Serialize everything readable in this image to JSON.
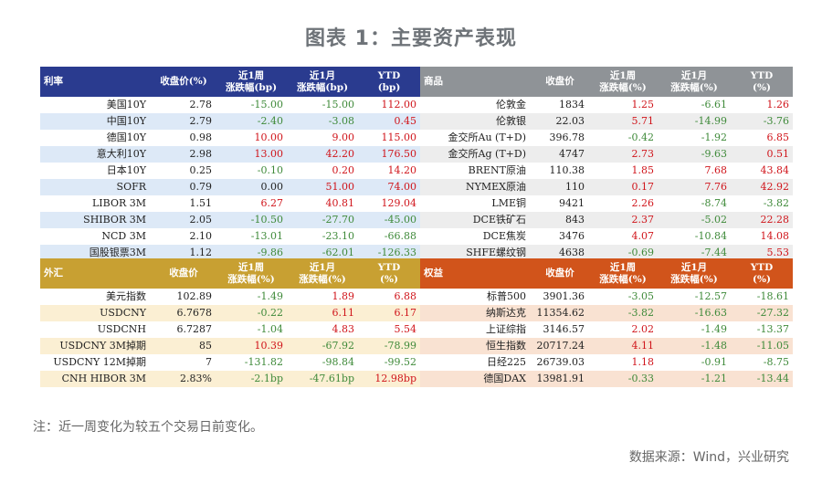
{
  "title": "图表 1：主要资产表现",
  "rates": {
    "headers": [
      "利率",
      "收盘价(%)",
      "近1周\n涨跌幅(bp)",
      "近1月\n涨跌幅(bp)",
      "YTD\n(bp)"
    ],
    "rows": [
      [
        "美国10Y",
        "2.78",
        "-15.00",
        "-15.00",
        "112.00"
      ],
      [
        "中国10Y",
        "2.79",
        "-2.40",
        "-3.08",
        "0.45"
      ],
      [
        "德国10Y",
        "0.98",
        "10.00",
        "9.00",
        "115.00"
      ],
      [
        "意大利10Y",
        "2.98",
        "13.00",
        "42.20",
        "176.50"
      ],
      [
        "日本10Y",
        "0.25",
        "-0.10",
        "0.20",
        "14.20"
      ],
      [
        "SOFR",
        "0.79",
        "0.00",
        "51.00",
        "74.00"
      ],
      [
        "LIBOR 3M",
        "1.51",
        "6.27",
        "40.81",
        "129.04"
      ],
      [
        "SHIBOR 3M",
        "2.05",
        "-10.50",
        "-27.70",
        "-45.00"
      ],
      [
        "NCD 3M",
        "2.10",
        "-13.01",
        "-23.10",
        "-66.88"
      ],
      [
        "国股银票3M",
        "1.12",
        "-9.86",
        "-62.01",
        "-126.33"
      ]
    ]
  },
  "commodities": {
    "headers": [
      "商品",
      "收盘价",
      "近1周\n涨跌幅(%)",
      "近1月\n涨跌幅(%)",
      "YTD\n(%)"
    ],
    "rows": [
      [
        "伦敦金",
        "1834",
        "1.25",
        "-6.61",
        "1.26"
      ],
      [
        "伦敦银",
        "22.03",
        "5.71",
        "-14.99",
        "-3.76"
      ],
      [
        "金交所Au (T+D)",
        "396.78",
        "-0.42",
        "-1.92",
        "6.85"
      ],
      [
        "金交所Ag (T+D)",
        "4747",
        "2.73",
        "-9.63",
        "0.51"
      ],
      [
        "BRENT原油",
        "110.38",
        "1.85",
        "7.68",
        "43.84"
      ],
      [
        "NYMEX原油",
        "110",
        "0.17",
        "7.76",
        "42.92"
      ],
      [
        "LME铜",
        "9421",
        "2.26",
        "-8.74",
        "-3.82"
      ],
      [
        "DCE铁矿石",
        "843",
        "2.37",
        "-5.02",
        "22.28"
      ],
      [
        "DCE焦炭",
        "3476",
        "4.07",
        "-10.84",
        "14.08"
      ],
      [
        "SHFE螺纹钢",
        "4638",
        "-0.69",
        "-7.44",
        "5.53"
      ]
    ]
  },
  "fx": {
    "headers": [
      "外汇",
      "收盘价",
      "近1周\n涨跌幅(%)",
      "近1月\n涨跌幅(%)",
      "YTD\n(%)"
    ],
    "rows": [
      [
        "美元指数",
        "102.89",
        "-1.49",
        "1.89",
        "6.88"
      ],
      [
        "USDCNY",
        "6.7678",
        "-0.22",
        "6.11",
        "6.17"
      ],
      [
        "USDCNH",
        "6.7287",
        "-1.04",
        "4.83",
        "5.54"
      ],
      [
        "USDCNY 3M掉期",
        "85",
        "10.39",
        "-67.92",
        "-78.99"
      ],
      [
        "USDCNY 12M掉期",
        "7",
        "-131.82",
        "-98.84",
        "-99.52"
      ],
      [
        "CNH HIBOR 3M",
        "2.83%",
        "-2.1bp",
        "-47.61bp",
        "12.98bp"
      ]
    ]
  },
  "equity": {
    "headers": [
      "权益",
      "收盘价",
      "近1周\n涨跌幅(%)",
      "近1月\n涨跌幅(%)",
      "YTD\n(%)"
    ],
    "rows": [
      [
        "标普500",
        "3901.36",
        "-3.05",
        "-12.57",
        "-18.61"
      ],
      [
        "纳斯达克",
        "11354.62",
        "-3.82",
        "-16.63",
        "-27.32"
      ],
      [
        "上证综指",
        "3146.57",
        "2.02",
        "-1.49",
        "-13.37"
      ],
      [
        "恒生指数",
        "20717.24",
        "4.11",
        "-1.48",
        "-11.05"
      ],
      [
        "日经225",
        "26739.03",
        "1.18",
        "-0.91",
        "-8.75"
      ],
      [
        "德国DAX",
        "13981.91",
        "-0.33",
        "-1.21",
        "-13.44"
      ]
    ]
  },
  "note": "注：近一周变化为较五个交易日前变化。",
  "source": "数据来源：Wind，兴业研究",
  "colors": {
    "rates_header": "#2a3b8f",
    "commodities_header": "#8f9397",
    "fx_header": "#c8a032",
    "equity_header": "#d1541b",
    "up": "#d0151b",
    "down": "#3f8a3a"
  }
}
